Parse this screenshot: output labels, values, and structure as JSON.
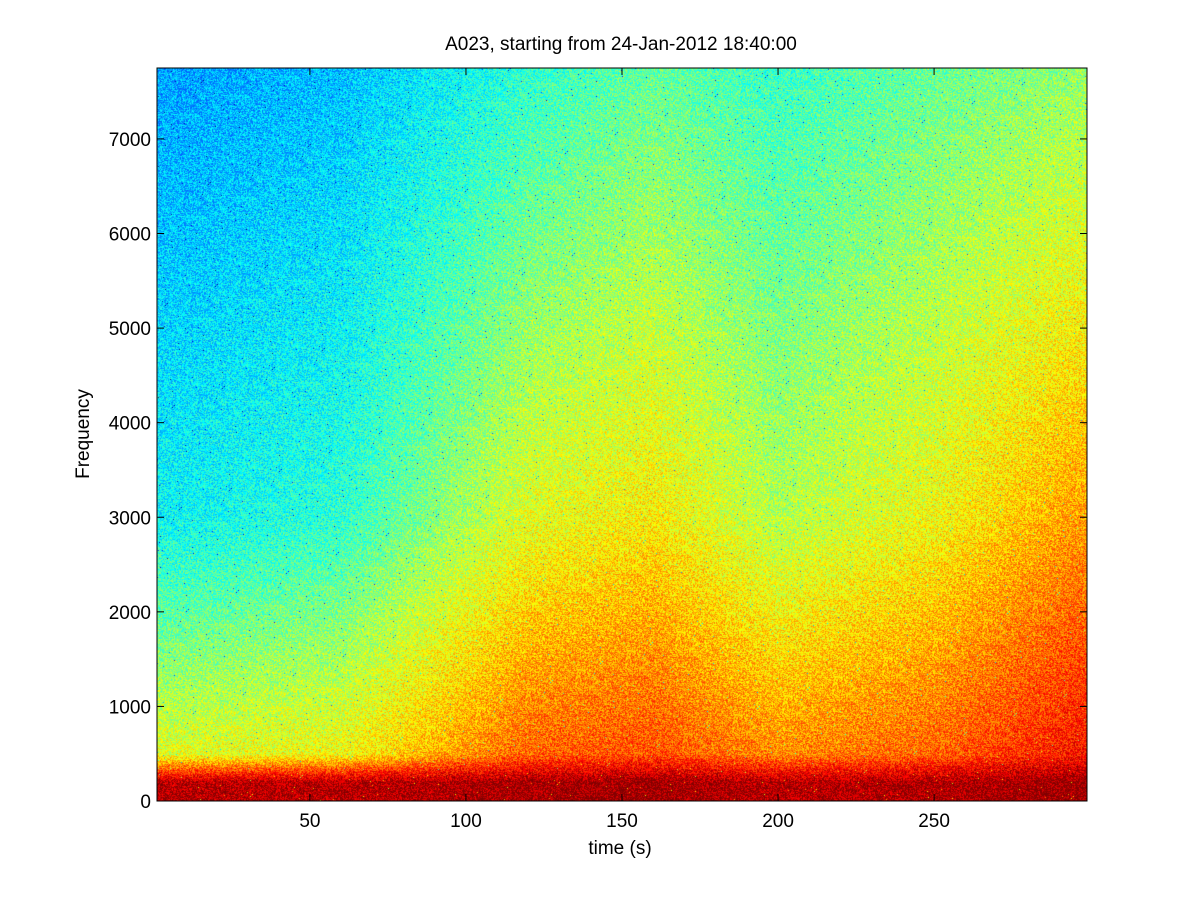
{
  "chart_data": {
    "type": "heatmap",
    "title": "A023, starting from 24-Jan-2012 18:40:00",
    "xlabel": "time (s)",
    "ylabel": "Frequency",
    "xlim": [
      1,
      299
    ],
    "ylim": [
      0,
      7750
    ],
    "x_ticks": [
      50,
      100,
      150,
      200,
      250
    ],
    "y_ticks": [
      0,
      1000,
      2000,
      3000,
      4000,
      5000,
      6000,
      7000
    ],
    "x_tick_labels": [
      "50",
      "100",
      "150",
      "200",
      "250"
    ],
    "y_tick_labels": [
      "0",
      "1000",
      "2000",
      "3000",
      "4000",
      "5000",
      "6000",
      "7000"
    ],
    "colormap": "jet",
    "grid": false,
    "legend": "none",
    "colors": {
      "low": "#2fe0c0",
      "mid": "#c8f040",
      "high": "#ffff00",
      "peak": "#d81800"
    },
    "intensity_profile": {
      "description_values": [
        {
          "time": 10,
          "freq_0_200": 0.95,
          "freq_500": 0.6,
          "freq_3000": 0.38,
          "freq_7000": 0.3
        },
        {
          "time": 60,
          "freq_0_200": 0.95,
          "freq_500": 0.62,
          "freq_3000": 0.42,
          "freq_7000": 0.33
        },
        {
          "time": 120,
          "freq_0_200": 0.97,
          "freq_500": 0.78,
          "freq_3000": 0.6,
          "freq_7000": 0.45
        },
        {
          "time": 160,
          "freq_0_200": 0.98,
          "freq_500": 0.8,
          "freq_3000": 0.64,
          "freq_7000": 0.5
        },
        {
          "time": 200,
          "freq_0_200": 0.95,
          "freq_500": 0.74,
          "freq_3000": 0.55,
          "freq_7000": 0.45
        },
        {
          "time": 250,
          "freq_0_200": 0.96,
          "freq_500": 0.78,
          "freq_3000": 0.62,
          "freq_7000": 0.5
        },
        {
          "time": 295,
          "freq_0_200": 0.98,
          "freq_500": 0.86,
          "freq_3000": 0.72,
          "freq_7000": 0.55
        }
      ]
    }
  }
}
